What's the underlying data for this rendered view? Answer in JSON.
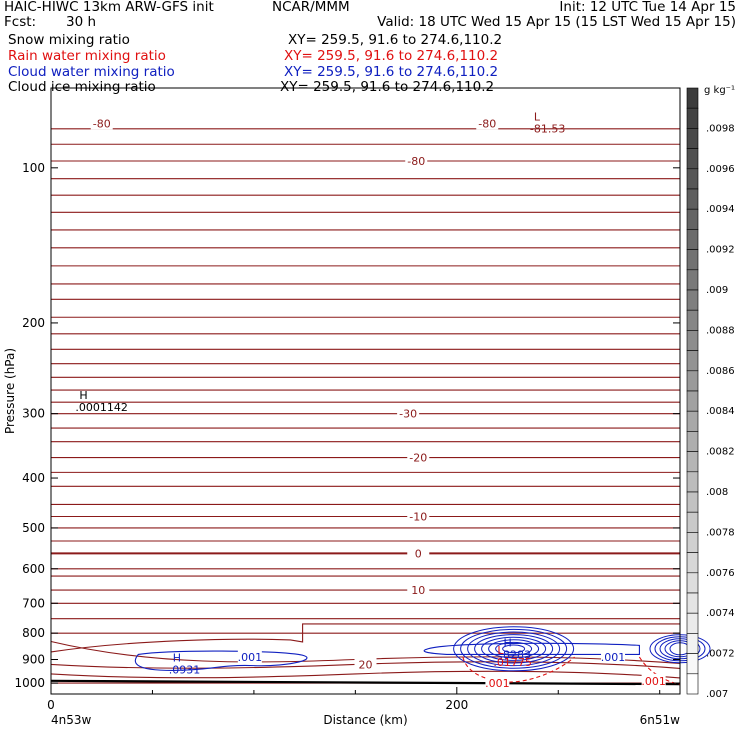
{
  "header": {
    "model": "HAIC-HIWC 13km ARW-GFS init",
    "center": "NCAR/MMM",
    "init": "Init: 12 UTC Tue 14 Apr 15",
    "fcst_label": "Fcst:",
    "fcst_value": "30 h",
    "valid": "Valid: 18 UTC Wed 15 Apr 15 (15 LST Wed 15 Apr 15)"
  },
  "legend": [
    {
      "name": "Snow mixing ratio",
      "xy": "XY= 259.5, 91.6 to 274.6,110.2",
      "color": "#000000"
    },
    {
      "name": "Rain water mixing ratio",
      "xy": "XY= 259.5, 91.6 to 274.6,110.2",
      "color": "#e01010"
    },
    {
      "name": "Cloud water mixing ratio",
      "xy": "XY= 259.5, 91.6 to 274.6,110.2",
      "color": "#1020c0"
    },
    {
      "name": "Cloud ice mixing ratio",
      "xy": "XY= 259.5, 91.6 to 274.6,110.2",
      "color": "#000000"
    }
  ],
  "colorbar": {
    "unit": "g kg⁻¹",
    "labels": [
      ".0098",
      ".0096",
      ".0094",
      ".0092",
      ".009",
      ".0088",
      ".0086",
      ".0084",
      ".0082",
      ".008",
      ".0078",
      ".0076",
      ".0074",
      ".0072",
      ".007"
    ]
  },
  "chart_data": {
    "type": "line",
    "xlabel": "Distance (km)",
    "ylabel": "Pressure (hPa)",
    "xlim": [
      0,
      310
    ],
    "ylim": [
      1050,
      70
    ],
    "y_scale": "log",
    "x_ticks": [
      0,
      200
    ],
    "y_ticks": [
      100,
      200,
      300,
      400,
      500,
      600,
      700,
      800,
      900,
      1000
    ],
    "x_endpoints": [
      "4n53w",
      "6n51w"
    ],
    "temperature_levels": [
      1000,
      960,
      920,
      900,
      870,
      800,
      750,
      700,
      660,
      620,
      600,
      560,
      530,
      500,
      475,
      450,
      415,
      390,
      365,
      340,
      320,
      300,
      285,
      270,
      255,
      240,
      225,
      210,
      195,
      180,
      168,
      155,
      143,
      132,
      122,
      113,
      105,
      97,
      90,
      84
    ],
    "temperature_labels": [
      {
        "text": "-80",
        "x": 25,
        "p": 82
      },
      {
        "text": "-80",
        "x": 180,
        "p": 97
      },
      {
        "text": "-80",
        "x": 215,
        "p": 82
      },
      {
        "text": "-30",
        "x": 176,
        "p": 300
      },
      {
        "text": "-20",
        "x": 181,
        "p": 365
      },
      {
        "text": "-10",
        "x": 181,
        "p": 475
      },
      {
        "text": "0",
        "x": 181,
        "p": 560
      },
      {
        "text": "10",
        "x": 181,
        "p": 660
      },
      {
        "text": "20",
        "x": 155,
        "p": 920
      }
    ],
    "extrema": [
      {
        "symbol": "L",
        "value": "-81.53",
        "x": 238,
        "p": 82,
        "color": "#8b1a1a"
      },
      {
        "symbol": "H",
        "value": ".0001142",
        "x": 14,
        "p": 285,
        "color": "#000000"
      },
      {
        "symbol": "H",
        "value": ".0931",
        "x": 60,
        "p": 920,
        "color": "#1020c0"
      },
      {
        "symbol": "H",
        "value": ".8283",
        "x": 223,
        "p": 860,
        "color": "#1020c0"
      },
      {
        "symbol": "L",
        "value": ".01775",
        "x": 220,
        "p": 890,
        "color": "#e01010"
      }
    ],
    "contour_labels": [
      {
        "text": ".001",
        "x": 98,
        "p": 890,
        "color": "#1020c0"
      },
      {
        "text": ".001",
        "x": 277,
        "p": 890,
        "color": "#1020c0"
      },
      {
        "text": ".001",
        "x": 220,
        "p": 1000,
        "color": "#e01010"
      },
      {
        "text": ".001",
        "x": 297,
        "p": 990,
        "color": "#e01010"
      }
    ]
  }
}
